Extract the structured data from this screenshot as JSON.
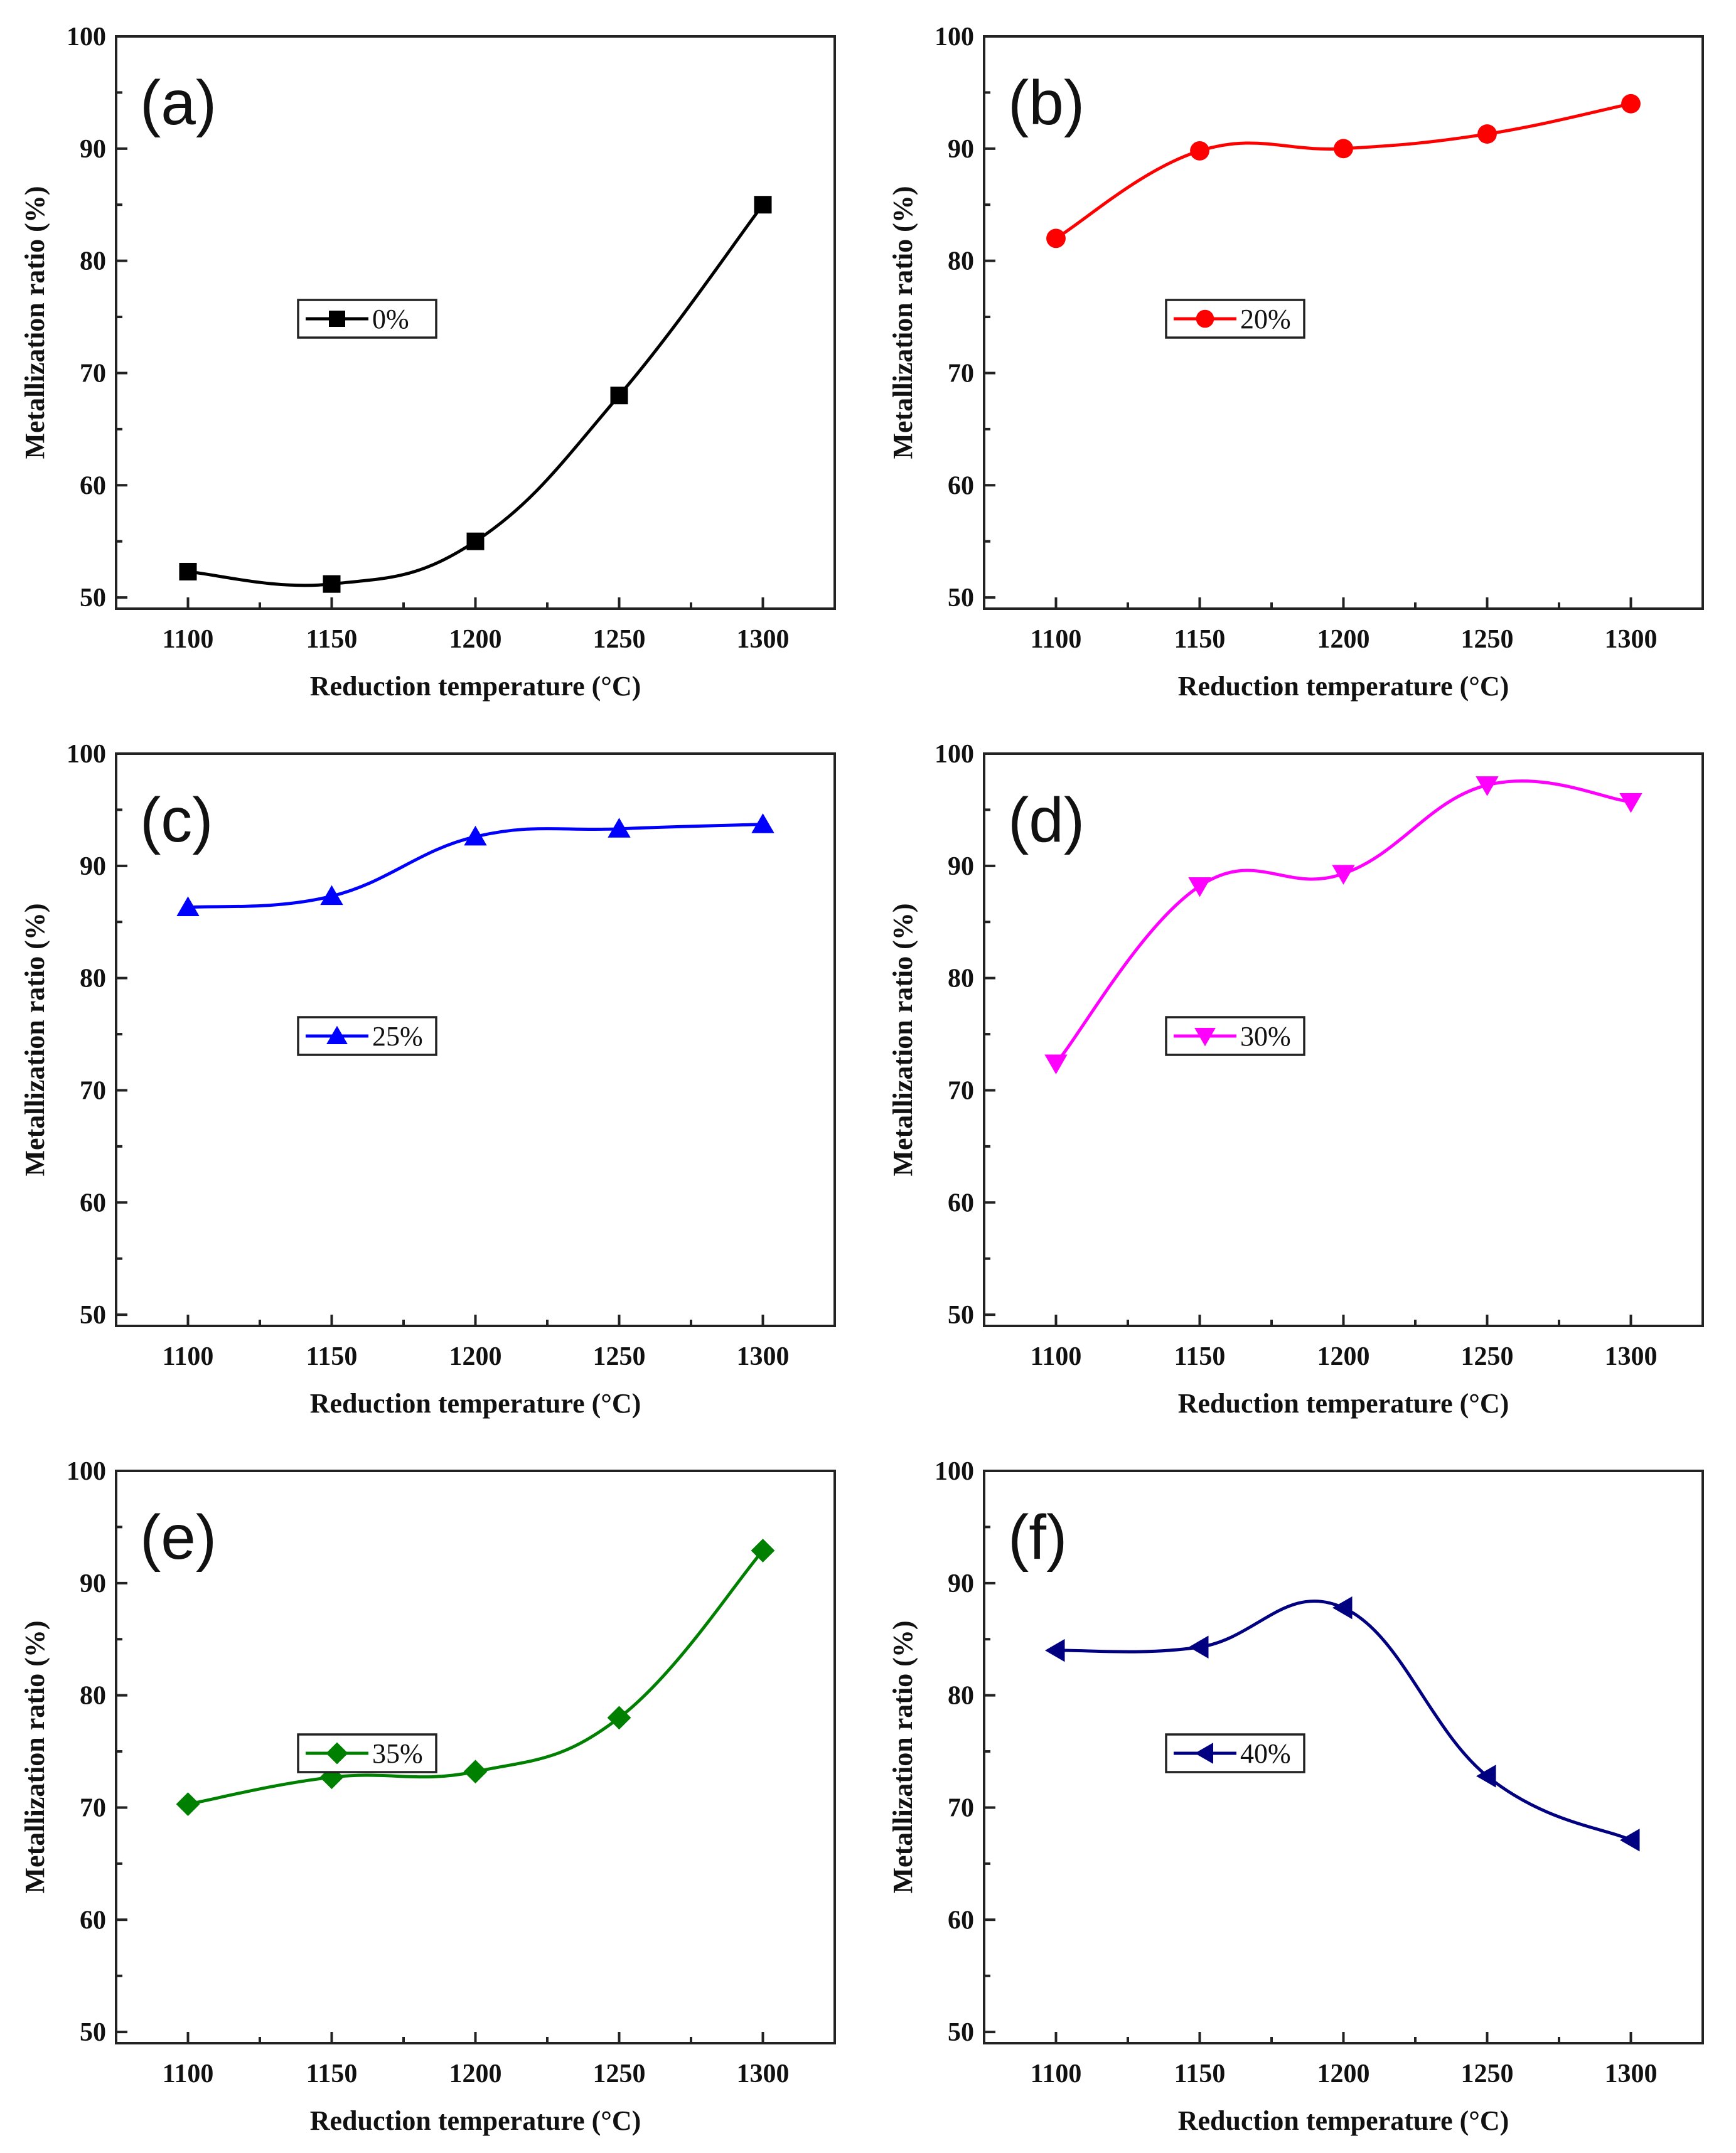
{
  "chart_data": [
    {
      "type": "line",
      "panel_label": "(a)",
      "xlabel": "Reduction temperature (°C)",
      "ylabel": "Metallization ratio (%)",
      "x": [
        1100,
        1150,
        1200,
        1250,
        1300
      ],
      "xticks": [
        "1100",
        "1150",
        "1200",
        "1250",
        "1300"
      ],
      "xlim": [
        1075,
        1325
      ],
      "ylim": [
        49,
        100
      ],
      "yticks": [
        "50",
        "60",
        "70",
        "80",
        "90",
        "100"
      ],
      "series": [
        {
          "name": "0%",
          "values": [
            52.3,
            51.2,
            55,
            68,
            85
          ],
          "color": "#000000",
          "marker": "square"
        }
      ],
      "legend_position": "center-left"
    },
    {
      "type": "line",
      "panel_label": "(b)",
      "xlabel": "Reduction temperature (°C)",
      "ylabel": "Metallization ratio (%)",
      "x": [
        1100,
        1150,
        1200,
        1250,
        1300
      ],
      "xticks": [
        "1100",
        "1150",
        "1200",
        "1250",
        "1300"
      ],
      "xlim": [
        1075,
        1325
      ],
      "ylim": [
        49,
        100
      ],
      "yticks": [
        "50",
        "60",
        "70",
        "80",
        "90",
        "100"
      ],
      "series": [
        {
          "name": "20%",
          "values": [
            82,
            89.8,
            90,
            91.3,
            94
          ],
          "color": "#ff0000",
          "marker": "circle"
        }
      ],
      "legend_position": "center-left"
    },
    {
      "type": "line",
      "panel_label": "(c)",
      "xlabel": "Reduction temperature (°C)",
      "ylabel": "Metallization ratio (%)",
      "x": [
        1100,
        1150,
        1200,
        1250,
        1300
      ],
      "xticks": [
        "1100",
        "1150",
        "1200",
        "1250",
        "1300"
      ],
      "xlim": [
        1075,
        1325
      ],
      "ylim": [
        49,
        100
      ],
      "yticks": [
        "50",
        "60",
        "70",
        "80",
        "90",
        "100"
      ],
      "series": [
        {
          "name": "25%",
          "values": [
            86.3,
            87.3,
            92.6,
            93.3,
            93.7
          ],
          "color": "#0000ff",
          "marker": "triangle-up"
        }
      ],
      "legend_position": "center-left"
    },
    {
      "type": "line",
      "panel_label": "(d)",
      "xlabel": "Reduction temperature (°C)",
      "ylabel": "Metallization ratio (%)",
      "x": [
        1100,
        1150,
        1200,
        1250,
        1300
      ],
      "xticks": [
        "1100",
        "1150",
        "1200",
        "1250",
        "1300"
      ],
      "xlim": [
        1075,
        1325
      ],
      "ylim": [
        49,
        100
      ],
      "yticks": [
        "50",
        "60",
        "70",
        "80",
        "90",
        "100"
      ],
      "series": [
        {
          "name": "30%",
          "values": [
            72.4,
            88.2,
            89.3,
            97.2,
            95.7
          ],
          "color": "#ff00ff",
          "marker": "triangle-down"
        }
      ],
      "legend_position": "center-left"
    },
    {
      "type": "line",
      "panel_label": "(e)",
      "xlabel": "Reduction temperature (°C)",
      "ylabel": "Metallization ratio (%)",
      "x": [
        1100,
        1150,
        1200,
        1250,
        1300
      ],
      "xticks": [
        "1100",
        "1150",
        "1200",
        "1250",
        "1300"
      ],
      "xlim": [
        1075,
        1325
      ],
      "ylim": [
        49,
        100
      ],
      "yticks": [
        "50",
        "60",
        "70",
        "80",
        "90",
        "100"
      ],
      "series": [
        {
          "name": "35%",
          "values": [
            70.3,
            72.7,
            73.2,
            78,
            92.9
          ],
          "color": "#008000",
          "marker": "diamond"
        }
      ],
      "legend_position": "center-left"
    },
    {
      "type": "line",
      "panel_label": "(f)",
      "xlabel": "Reduction temperature (°C)",
      "ylabel": "Metallization ratio (%)",
      "x": [
        1100,
        1150,
        1200,
        1250,
        1300
      ],
      "xticks": [
        "1100",
        "1150",
        "1200",
        "1250",
        "1300"
      ],
      "xlim": [
        1075,
        1325
      ],
      "ylim": [
        49,
        100
      ],
      "yticks": [
        "50",
        "60",
        "70",
        "80",
        "90",
        "100"
      ],
      "series": [
        {
          "name": "40%",
          "values": [
            84,
            84.3,
            87.8,
            72.8,
            67.1
          ],
          "color": "#000080",
          "marker": "triangle-left"
        }
      ],
      "legend_position": "center-left"
    }
  ]
}
